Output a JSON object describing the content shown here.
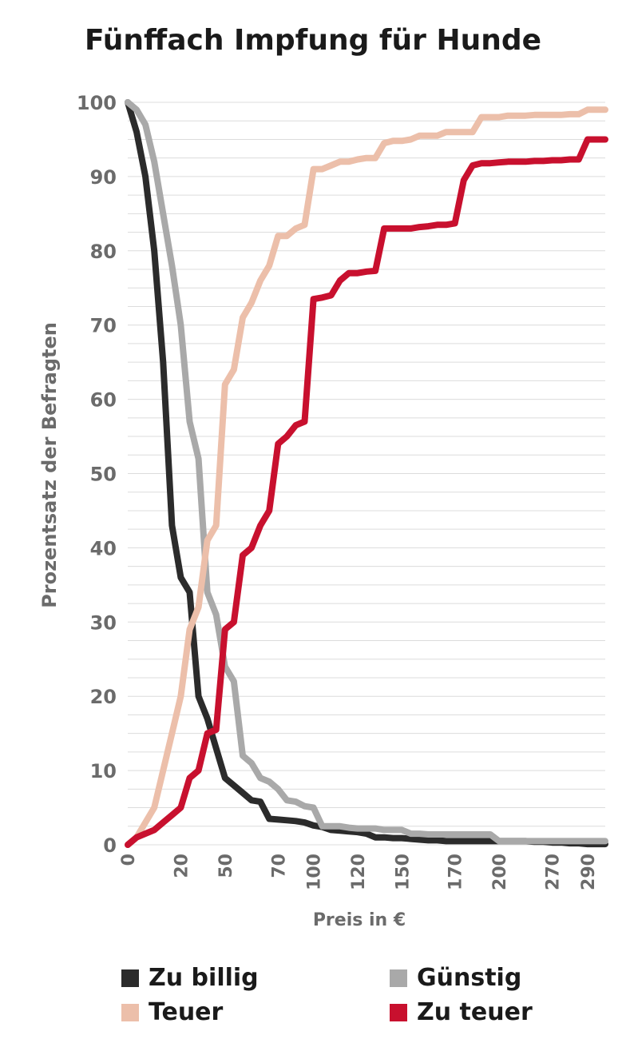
{
  "colors": {
    "zu_billig": "#2b2b2b",
    "guenstig": "#a9a9a9",
    "teuer": "#ecbfaa",
    "zu_teuer": "#c8102e",
    "grid": "#dcdcdc",
    "text": "#6b6b6b"
  },
  "chart_data": {
    "type": "line",
    "title": "Fünffach Impfung für Hunde",
    "xlabel": "Preis in €",
    "ylabel": "Prozentsatz der Befragten",
    "ylim": [
      0,
      100
    ],
    "y_ticks": [
      "0",
      "10",
      "20",
      "30",
      "40",
      "50",
      "60",
      "70",
      "80",
      "90",
      "100"
    ],
    "x_ticks": [
      "0",
      "20",
      "50",
      "70",
      "100",
      "120",
      "150",
      "170",
      "200",
      "270",
      "290"
    ],
    "grid": true,
    "legend_position": "bottom",
    "x_note": "categorical price steps (index 0–54)",
    "series": [
      {
        "name": "Zu billig",
        "color_key": "zu_billig",
        "points": [
          [
            0,
            100
          ],
          [
            1,
            96
          ],
          [
            2,
            90
          ],
          [
            3,
            80
          ],
          [
            4,
            65
          ],
          [
            5,
            43
          ],
          [
            6,
            36
          ],
          [
            7,
            34
          ],
          [
            8,
            20
          ],
          [
            9,
            17
          ],
          [
            10,
            13
          ],
          [
            11,
            9
          ],
          [
            12,
            8
          ],
          [
            13,
            7
          ],
          [
            14,
            6
          ],
          [
            15,
            5.8
          ],
          [
            16,
            3.5
          ],
          [
            17,
            3.4
          ],
          [
            18,
            3.3
          ],
          [
            19,
            3.2
          ],
          [
            20,
            3
          ],
          [
            21,
            2.6
          ],
          [
            22,
            2.4
          ],
          [
            23,
            2
          ],
          [
            24,
            1.9
          ],
          [
            25,
            1.8
          ],
          [
            26,
            1.7
          ],
          [
            27,
            1.5
          ],
          [
            28,
            1
          ],
          [
            29,
            1
          ],
          [
            30,
            0.9
          ],
          [
            31,
            0.9
          ],
          [
            32,
            0.8
          ],
          [
            33,
            0.7
          ],
          [
            34,
            0.6
          ],
          [
            35,
            0.6
          ],
          [
            36,
            0.5
          ],
          [
            37,
            0.5
          ],
          [
            38,
            0.5
          ],
          [
            39,
            0.5
          ],
          [
            40,
            0.5
          ],
          [
            41,
            0.5
          ],
          [
            42,
            0.5
          ],
          [
            43,
            0.5
          ],
          [
            44,
            0.5
          ],
          [
            45,
            0.5
          ],
          [
            46,
            0.4
          ],
          [
            47,
            0.4
          ],
          [
            48,
            0.3
          ],
          [
            49,
            0.3
          ],
          [
            50,
            0.2
          ],
          [
            51,
            0.2
          ],
          [
            52,
            0.1
          ],
          [
            53,
            0.1
          ],
          [
            54,
            0.1
          ]
        ]
      },
      {
        "name": "Günstig",
        "color_key": "guenstig",
        "points": [
          [
            0,
            100
          ],
          [
            1,
            99
          ],
          [
            2,
            97
          ],
          [
            3,
            92
          ],
          [
            4,
            85
          ],
          [
            5,
            78
          ],
          [
            6,
            70
          ],
          [
            7,
            57
          ],
          [
            8,
            52
          ],
          [
            9,
            34
          ],
          [
            10,
            31
          ],
          [
            11,
            24
          ],
          [
            12,
            22
          ],
          [
            13,
            12
          ],
          [
            14,
            11
          ],
          [
            15,
            9
          ],
          [
            16,
            8.5
          ],
          [
            17,
            7.5
          ],
          [
            18,
            6
          ],
          [
            19,
            5.8
          ],
          [
            20,
            5.2
          ],
          [
            21,
            5
          ],
          [
            22,
            2.5
          ],
          [
            23,
            2.5
          ],
          [
            24,
            2.5
          ],
          [
            25,
            2.3
          ],
          [
            26,
            2.2
          ],
          [
            27,
            2.2
          ],
          [
            28,
            2.2
          ],
          [
            29,
            2
          ],
          [
            30,
            2
          ],
          [
            31,
            2
          ],
          [
            32,
            1.5
          ],
          [
            33,
            1.5
          ],
          [
            34,
            1.4
          ],
          [
            35,
            1.4
          ],
          [
            36,
            1.4
          ],
          [
            37,
            1.4
          ],
          [
            38,
            1.4
          ],
          [
            39,
            1.4
          ],
          [
            40,
            1.4
          ],
          [
            41,
            1.4
          ],
          [
            42,
            0.5
          ],
          [
            43,
            0.5
          ],
          [
            44,
            0.5
          ],
          [
            45,
            0.5
          ],
          [
            46,
            0.5
          ],
          [
            47,
            0.5
          ],
          [
            48,
            0.5
          ],
          [
            49,
            0.5
          ],
          [
            50,
            0.5
          ],
          [
            51,
            0.5
          ],
          [
            52,
            0.5
          ],
          [
            53,
            0.5
          ],
          [
            54,
            0.5
          ]
        ]
      },
      {
        "name": "Teuer",
        "color_key": "teuer",
        "points": [
          [
            0,
            0
          ],
          [
            1,
            1
          ],
          [
            2,
            3
          ],
          [
            3,
            5
          ],
          [
            4,
            10
          ],
          [
            5,
            15
          ],
          [
            6,
            20
          ],
          [
            7,
            29
          ],
          [
            8,
            32
          ],
          [
            9,
            41
          ],
          [
            10,
            43
          ],
          [
            11,
            62
          ],
          [
            12,
            64
          ],
          [
            13,
            71
          ],
          [
            14,
            73
          ],
          [
            15,
            76
          ],
          [
            16,
            78
          ],
          [
            17,
            82
          ],
          [
            18,
            82
          ],
          [
            19,
            83
          ],
          [
            20,
            83.5
          ],
          [
            21,
            91
          ],
          [
            22,
            91
          ],
          [
            23,
            91.5
          ],
          [
            24,
            92
          ],
          [
            25,
            92
          ],
          [
            26,
            92.3
          ],
          [
            27,
            92.5
          ],
          [
            28,
            92.5
          ],
          [
            29,
            94.5
          ],
          [
            30,
            94.8
          ],
          [
            31,
            94.8
          ],
          [
            32,
            95
          ],
          [
            33,
            95.5
          ],
          [
            34,
            95.5
          ],
          [
            35,
            95.5
          ],
          [
            36,
            96
          ],
          [
            37,
            96
          ],
          [
            38,
            96
          ],
          [
            39,
            96
          ],
          [
            40,
            98
          ],
          [
            41,
            98
          ],
          [
            42,
            98
          ],
          [
            43,
            98.2
          ],
          [
            44,
            98.2
          ],
          [
            45,
            98.2
          ],
          [
            46,
            98.3
          ],
          [
            47,
            98.3
          ],
          [
            48,
            98.3
          ],
          [
            49,
            98.3
          ],
          [
            50,
            98.4
          ],
          [
            51,
            98.4
          ],
          [
            52,
            99
          ],
          [
            53,
            99
          ],
          [
            54,
            99
          ]
        ]
      },
      {
        "name": "Zu teuer",
        "color_key": "zu_teuer",
        "points": [
          [
            0,
            0
          ],
          [
            1,
            1
          ],
          [
            2,
            1.5
          ],
          [
            3,
            2
          ],
          [
            4,
            3
          ],
          [
            5,
            4
          ],
          [
            6,
            5
          ],
          [
            7,
            9
          ],
          [
            8,
            10
          ],
          [
            9,
            15
          ],
          [
            10,
            15.5
          ],
          [
            11,
            29
          ],
          [
            12,
            30
          ],
          [
            13,
            39
          ],
          [
            14,
            40
          ],
          [
            15,
            43
          ],
          [
            16,
            45
          ],
          [
            17,
            54
          ],
          [
            18,
            55
          ],
          [
            19,
            56.5
          ],
          [
            20,
            57
          ],
          [
            21,
            73.5
          ],
          [
            22,
            73.7
          ],
          [
            23,
            74
          ],
          [
            24,
            76
          ],
          [
            25,
            77
          ],
          [
            26,
            77
          ],
          [
            27,
            77.2
          ],
          [
            28,
            77.3
          ],
          [
            29,
            83
          ],
          [
            30,
            83
          ],
          [
            31,
            83
          ],
          [
            32,
            83
          ],
          [
            33,
            83.2
          ],
          [
            34,
            83.3
          ],
          [
            35,
            83.5
          ],
          [
            36,
            83.5
          ],
          [
            37,
            83.7
          ],
          [
            38,
            89.5
          ],
          [
            39,
            91.5
          ],
          [
            40,
            91.8
          ],
          [
            41,
            91.8
          ],
          [
            42,
            91.9
          ],
          [
            43,
            92
          ],
          [
            44,
            92
          ],
          [
            45,
            92
          ],
          [
            46,
            92.1
          ],
          [
            47,
            92.1
          ],
          [
            48,
            92.2
          ],
          [
            49,
            92.2
          ],
          [
            50,
            92.3
          ],
          [
            51,
            92.3
          ],
          [
            52,
            95
          ],
          [
            53,
            95
          ],
          [
            54,
            95
          ]
        ]
      }
    ]
  },
  "legend": [
    {
      "label": "Zu billig",
      "color_key": "zu_billig"
    },
    {
      "label": "Günstig",
      "color_key": "guenstig"
    },
    {
      "label": "Teuer",
      "color_key": "teuer"
    },
    {
      "label": "Zu teuer",
      "color_key": "zu_teuer"
    }
  ]
}
